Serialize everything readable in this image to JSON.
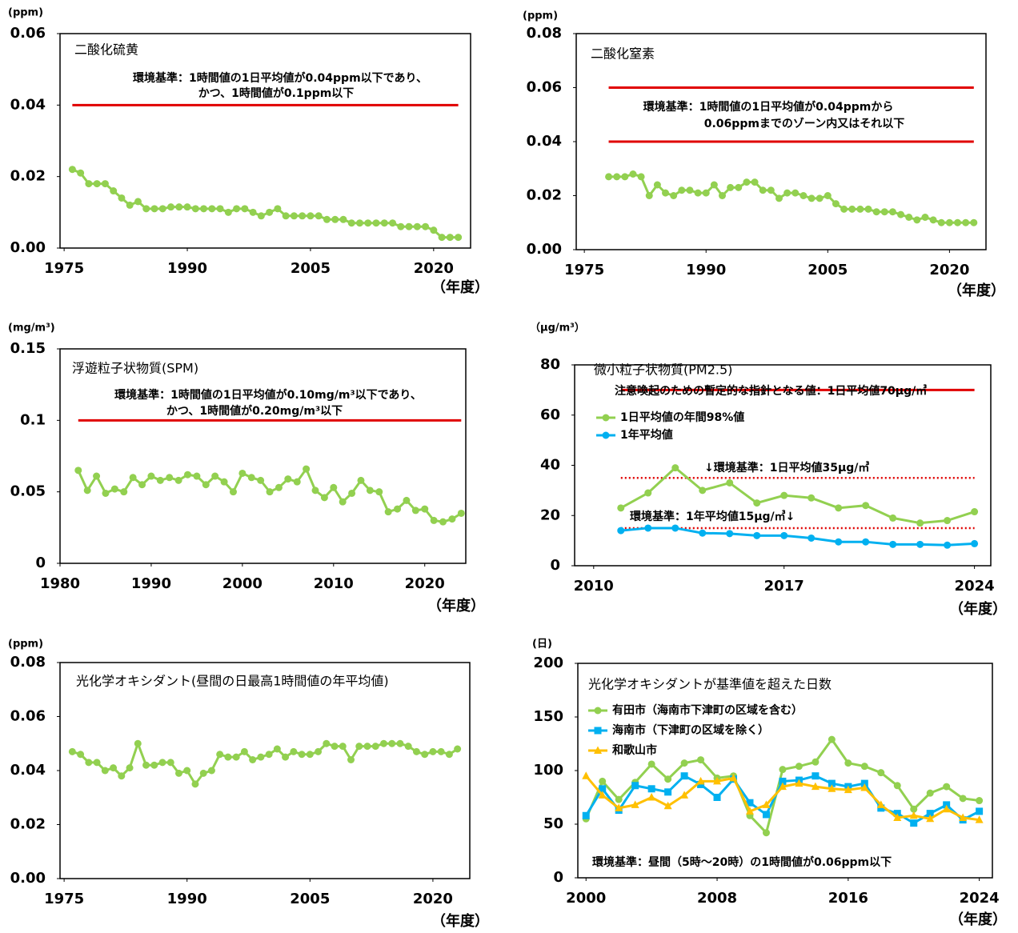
{
  "chart_data": [
    {
      "type": "line",
      "title": "二酸化硫黄",
      "y_unit": "(ppm)",
      "x_unit": "（年度）",
      "annotations": [
        "環境基準：1時間値の1日平均値が0.04ppm以下であり、",
        "かつ、1時間値が0.1ppm以下"
      ],
      "xlim": [
        1974.5,
        2024.5
      ],
      "ylim": [
        0,
        0.06
      ],
      "xticks": [
        1975,
        1990,
        2005,
        2020
      ],
      "yticks": [
        {
          "value": 0,
          "label": "0.00"
        },
        0.02,
        0.04,
        0.06
      ],
      "reference_lines": [
        {
          "value": 0.04,
          "color": "#e00000",
          "style": "solid"
        }
      ],
      "x": [
        1976,
        1977,
        1978,
        1979,
        1980,
        1981,
        1982,
        1983,
        1984,
        1985,
        1986,
        1987,
        1988,
        1989,
        1990,
        1991,
        1992,
        1993,
        1994,
        1995,
        1996,
        1997,
        1998,
        1999,
        2000,
        2001,
        2002,
        2003,
        2004,
        2005,
        2006,
        2007,
        2008,
        2009,
        2010,
        2011,
        2012,
        2013,
        2014,
        2015,
        2016,
        2017,
        2018,
        2019,
        2020,
        2021,
        2022,
        2023
      ],
      "series": [
        {
          "color": "#92d050",
          "marker": "circle",
          "values": [
            0.022,
            0.021,
            0.018,
            0.018,
            0.018,
            0.016,
            0.014,
            0.012,
            0.013,
            0.011,
            0.011,
            0.011,
            0.0115,
            0.0115,
            0.0115,
            0.011,
            0.011,
            0.011,
            0.011,
            0.01,
            0.011,
            0.011,
            0.01,
            0.009,
            0.01,
            0.011,
            0.009,
            0.009,
            0.009,
            0.009,
            0.009,
            0.008,
            0.008,
            0.008,
            0.007,
            0.007,
            0.007,
            0.007,
            0.007,
            0.007,
            0.006,
            0.006,
            0.006,
            0.006,
            0.005,
            0.003,
            0.003,
            0.003
          ]
        }
      ]
    },
    {
      "type": "line",
      "title": "二酸化窒素",
      "y_unit": "(ppm)",
      "x_unit": "（年度）",
      "annotations": [
        "環境基準：1時間値の1日平均値が0.04ppmから",
        "0.06ppmまでのゾーン内又はそれ以下"
      ],
      "xlim": [
        1974,
        2024.5
      ],
      "ylim": [
        0,
        0.08
      ],
      "xticks": [
        1975,
        1990,
        2005,
        2020
      ],
      "yticks": [
        {
          "value": 0,
          "label": "0.00"
        },
        0.02,
        0.04,
        0.06,
        0.08
      ],
      "reference_lines": [
        {
          "value": 0.06,
          "color": "#e00000",
          "style": "solid"
        },
        {
          "value": 0.04,
          "color": "#e00000",
          "style": "solid"
        }
      ],
      "x": [
        1978,
        1979,
        1980,
        1981,
        1982,
        1983,
        1984,
        1985,
        1986,
        1987,
        1988,
        1989,
        1990,
        1991,
        1992,
        1993,
        1994,
        1995,
        1996,
        1997,
        1998,
        1999,
        2000,
        2001,
        2002,
        2003,
        2004,
        2005,
        2006,
        2007,
        2008,
        2009,
        2010,
        2011,
        2012,
        2013,
        2014,
        2015,
        2016,
        2017,
        2018,
        2019,
        2020,
        2021,
        2022,
        2023
      ],
      "series": [
        {
          "color": "#92d050",
          "marker": "circle",
          "values": [
            0.027,
            0.027,
            0.027,
            0.028,
            0.027,
            0.02,
            0.024,
            0.021,
            0.02,
            0.022,
            0.022,
            0.021,
            0.021,
            0.024,
            0.02,
            0.023,
            0.023,
            0.025,
            0.025,
            0.022,
            0.022,
            0.019,
            0.021,
            0.021,
            0.02,
            0.019,
            0.019,
            0.02,
            0.017,
            0.015,
            0.015,
            0.015,
            0.015,
            0.014,
            0.014,
            0.014,
            0.013,
            0.012,
            0.011,
            0.012,
            0.011,
            0.01,
            0.01,
            0.01,
            0.01,
            0.01
          ]
        }
      ]
    },
    {
      "type": "line",
      "title": "浮遊粒子状物質(SPM)",
      "y_unit": "(mg/m³)",
      "x_unit": "（年度）",
      "annotations": [
        "環境基準：1時間値の1日平均値が0.10mg/m³以下であり、",
        "かつ、1時間値が0.20mg/m³以下"
      ],
      "xlim": [
        1980,
        2024.5
      ],
      "ylim": [
        0,
        0.15
      ],
      "xticks": [
        1980,
        1990,
        2000,
        2010,
        2020
      ],
      "yticks": [
        0,
        0.05,
        0.1,
        0.15
      ],
      "reference_lines": [
        {
          "value": 0.1,
          "color": "#e00000",
          "style": "solid"
        }
      ],
      "x": [
        1982,
        1983,
        1984,
        1985,
        1986,
        1987,
        1988,
        1989,
        1990,
        1991,
        1992,
        1993,
        1994,
        1995,
        1996,
        1997,
        1998,
        1999,
        2000,
        2001,
        2002,
        2003,
        2004,
        2005,
        2006,
        2007,
        2008,
        2009,
        2010,
        2011,
        2012,
        2013,
        2014,
        2015,
        2016,
        2017,
        2018,
        2019,
        2020,
        2021,
        2022,
        2023,
        2024
      ],
      "series": [
        {
          "color": "#92d050",
          "marker": "circle",
          "values": [
            0.065,
            0.051,
            0.061,
            0.049,
            0.052,
            0.05,
            0.06,
            0.055,
            0.061,
            0.058,
            0.06,
            0.058,
            0.062,
            0.061,
            0.055,
            0.061,
            0.057,
            0.05,
            0.063,
            0.06,
            0.058,
            0.05,
            0.053,
            0.059,
            0.057,
            0.066,
            0.051,
            0.046,
            0.053,
            0.043,
            0.049,
            0.058,
            0.051,
            0.05,
            0.036,
            0.038,
            0.044,
            0.037,
            0.038,
            0.03,
            0.029,
            0.031,
            0.035
          ]
        }
      ]
    },
    {
      "type": "line",
      "title": "微小粒子状物質(PM2.5)",
      "y_unit": "（μg/m³）",
      "x_unit": "（年度）",
      "annotations": [
        "注意喚起のための暫定的な指針となる値：1日平均値70μg/㎥",
        "↓環境基準：1日平均値35μg/㎥",
        "環境基準：1年平均値15μg/㎥↓"
      ],
      "xlim": [
        2009.3,
        2024.6
      ],
      "ylim": [
        0,
        80
      ],
      "xticks": [
        2010,
        2017,
        2024
      ],
      "yticks": [
        0,
        20,
        40,
        60,
        80
      ],
      "legend": "upper left",
      "reference_lines": [
        {
          "value": 70,
          "color": "#e00000",
          "style": "solid"
        },
        {
          "value": 35,
          "color": "#e00000",
          "style": "dotted"
        },
        {
          "value": 15,
          "color": "#e00000",
          "style": "dotted"
        }
      ],
      "x": [
        2011,
        2012,
        2013,
        2014,
        2015,
        2016,
        2017,
        2018,
        2019,
        2020,
        2021,
        2022,
        2023,
        2024
      ],
      "series": [
        {
          "name": "1日平均値の年間98%値",
          "color": "#92d050",
          "marker": "circle",
          "values": [
            23,
            29,
            39,
            30,
            33,
            25,
            28,
            27,
            23,
            24,
            19,
            17,
            18,
            21.5
          ]
        },
        {
          "name": "1年平均値",
          "color": "#00b0f0",
          "marker": "circle",
          "values": [
            14,
            15,
            15,
            13,
            12.8,
            12,
            12,
            11,
            9.5,
            9.5,
            8.5,
            8.5,
            8.2,
            8.8
          ]
        }
      ]
    },
    {
      "type": "line",
      "title": "光化学オキシダント(昼間の日最高1時間値の年平均値)",
      "y_unit": "(ppm)",
      "x_unit": "（年度）",
      "annotations": [],
      "xlim": [
        1974.5,
        2024.5
      ],
      "ylim": [
        0,
        0.08
      ],
      "xticks": [
        1975,
        1990,
        2005,
        2020
      ],
      "yticks": [
        {
          "value": 0,
          "label": "0.00"
        },
        0.02,
        0.04,
        0.06,
        0.08
      ],
      "reference_lines": [],
      "x": [
        1976,
        1977,
        1978,
        1979,
        1980,
        1981,
        1982,
        1983,
        1984,
        1985,
        1986,
        1987,
        1988,
        1989,
        1990,
        1991,
        1992,
        1993,
        1994,
        1995,
        1996,
        1997,
        1998,
        1999,
        2000,
        2001,
        2002,
        2003,
        2004,
        2005,
        2006,
        2007,
        2008,
        2009,
        2010,
        2011,
        2012,
        2013,
        2014,
        2015,
        2016,
        2017,
        2018,
        2019,
        2020,
        2021,
        2022,
        2023
      ],
      "series": [
        {
          "color": "#92d050",
          "marker": "circle",
          "values": [
            0.047,
            0.046,
            0.043,
            0.043,
            0.04,
            0.041,
            0.038,
            0.041,
            0.05,
            0.042,
            0.042,
            0.043,
            0.043,
            0.039,
            0.04,
            0.035,
            0.039,
            0.04,
            0.046,
            0.045,
            0.045,
            0.047,
            0.044,
            0.045,
            0.046,
            0.048,
            0.045,
            0.047,
            0.046,
            0.046,
            0.047,
            0.05,
            0.049,
            0.049,
            0.044,
            0.049,
            0.049,
            0.049,
            0.05,
            0.05,
            0.05,
            0.049,
            0.047,
            0.046,
            0.047,
            0.047,
            0.046,
            0.048
          ]
        }
      ]
    },
    {
      "type": "line",
      "title": "光化学オキシダントが基準値を超えた日数",
      "y_unit": "(日)",
      "x_unit": "（年度）",
      "annotations": [
        "環境基準：昼間（5時～20時）の1時間値が0.06ppm以下"
      ],
      "xlim": [
        1999.5,
        2024.8
      ],
      "ylim": [
        0,
        200
      ],
      "xticks": [
        2000,
        2008,
        2016,
        2024
      ],
      "yticks": [
        0,
        50,
        100,
        150,
        200
      ],
      "legend": "upper left",
      "reference_lines": [],
      "x": [
        2000,
        2001,
        2002,
        2003,
        2004,
        2005,
        2006,
        2007,
        2008,
        2009,
        2010,
        2011,
        2012,
        2013,
        2014,
        2015,
        2016,
        2017,
        2018,
        2019,
        2020,
        2021,
        2022,
        2023,
        2024
      ],
      "series": [
        {
          "name": "有田市（海南市下津町の区域を含む）",
          "color": "#92d050",
          "marker": "circle",
          "values": [
            55,
            90,
            73,
            89,
            106,
            92,
            107,
            110,
            93,
            95,
            58,
            42,
            101,
            104,
            108,
            129,
            107,
            104,
            98,
            86,
            64,
            79,
            85,
            74,
            72
          ]
        },
        {
          "name": "海南市（下津町の区域を除く）",
          "color": "#00b0f0",
          "marker": "square",
          "values": [
            58,
            83,
            63,
            86,
            83,
            80,
            95,
            87,
            75,
            92,
            70,
            59,
            90,
            91,
            95,
            88,
            85,
            88,
            65,
            60,
            51,
            60,
            68,
            54,
            62
          ]
        },
        {
          "name": "和歌山市",
          "color": "#ffc000",
          "marker": "triangle",
          "values": [
            95,
            77,
            65,
            68,
            75,
            67,
            77,
            90,
            90,
            93,
            62,
            68,
            85,
            88,
            85,
            83,
            82,
            84,
            68,
            56,
            58,
            55,
            64,
            56,
            54
          ]
        }
      ]
    }
  ]
}
